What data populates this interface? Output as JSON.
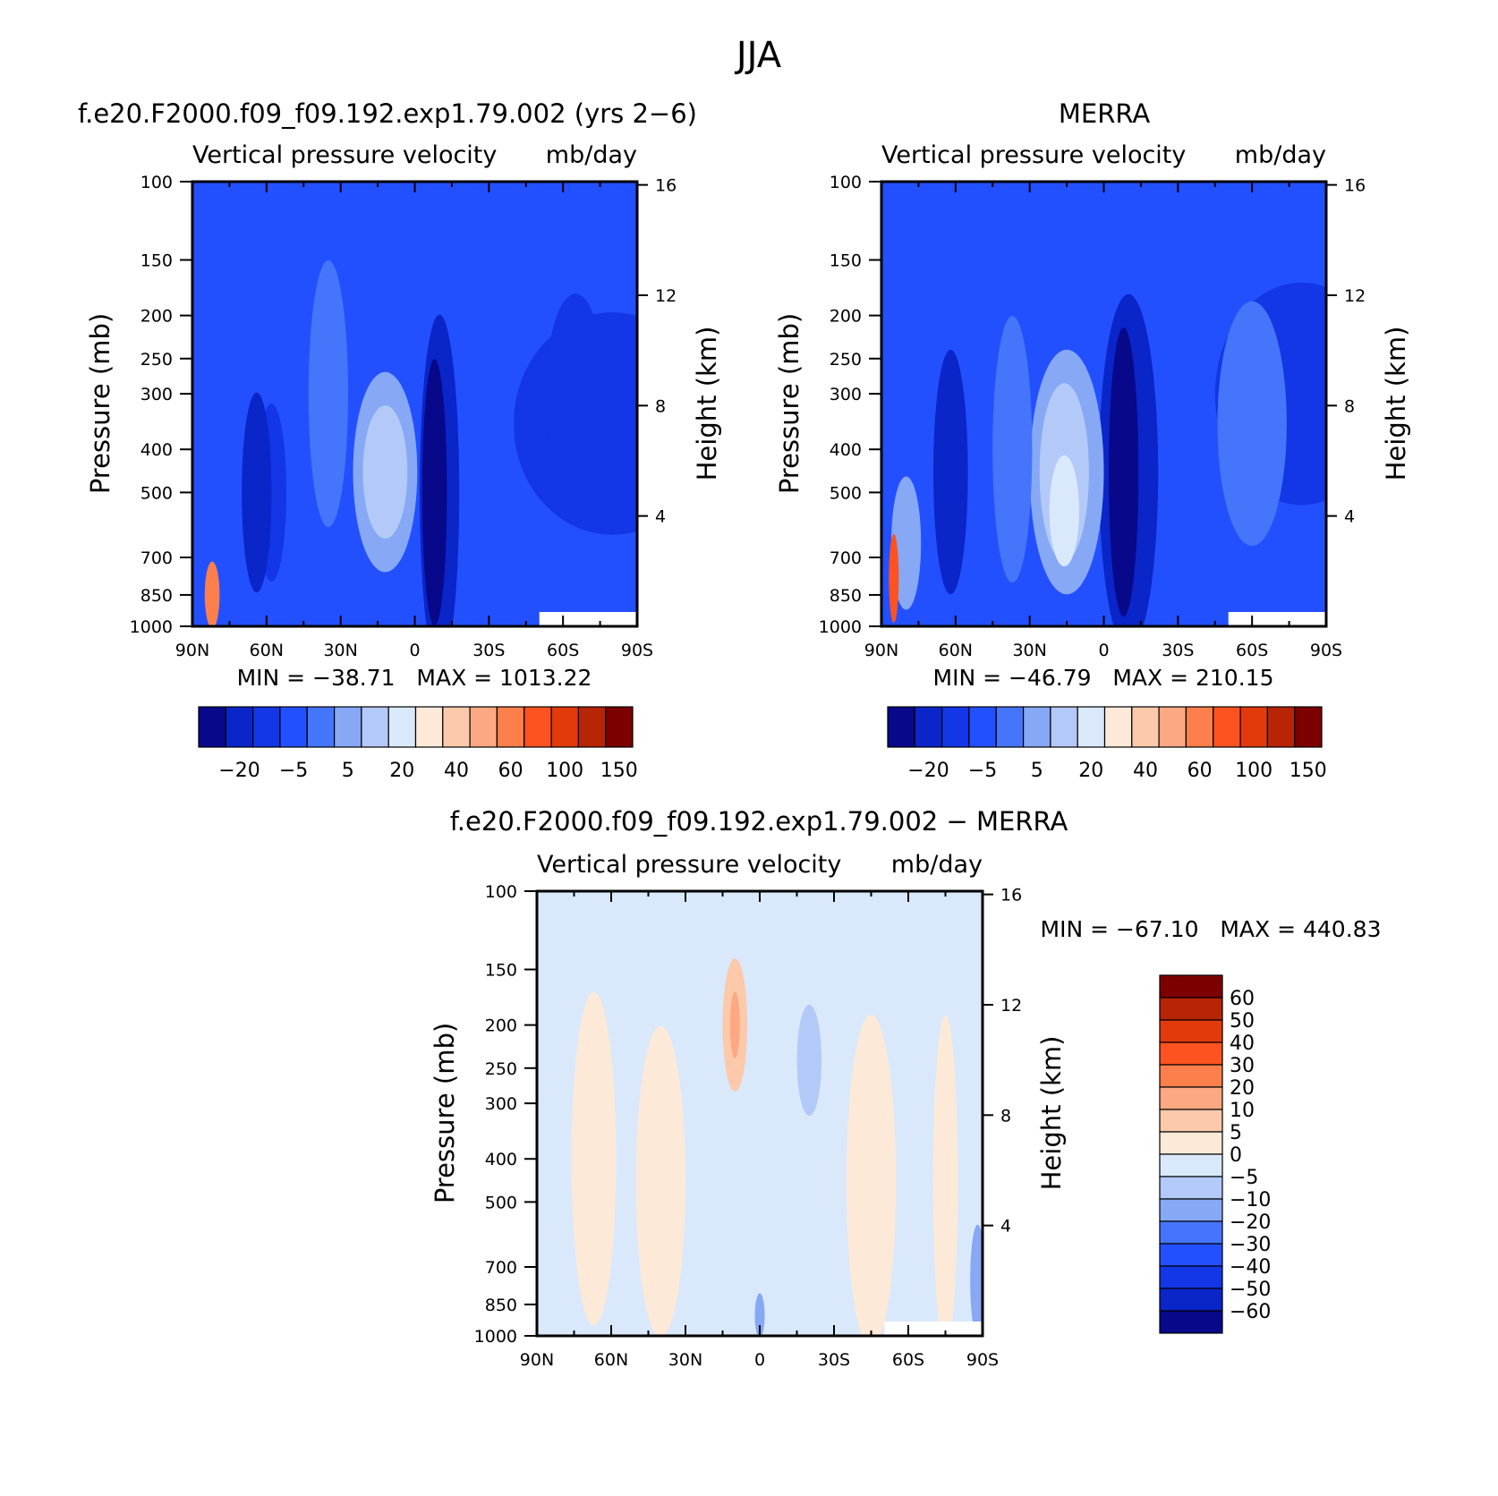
{
  "page_title": "JJA",
  "chart_data": [
    {
      "type": "heatmap",
      "title": "f.e20.F2000.f09_f09.192.exp1.79.002 (yrs 2−6)",
      "subtitle_left": "Vertical pressure velocity",
      "subtitle_right": "mb/day",
      "xlabel": "",
      "ylabel": "Pressure (mb)",
      "y2label": "Height (km)",
      "x_ticks": [
        "90N",
        "60N",
        "30N",
        "0",
        "30S",
        "60S",
        "90S"
      ],
      "y_ticks": [
        "100",
        "150",
        "200",
        "250",
        "300",
        "400",
        "500",
        "700",
        "850",
        "1000"
      ],
      "y2_ticks": [
        "16",
        "12",
        "8",
        "4"
      ],
      "stats": "MIN = −38.71   MAX = 1013.22",
      "colorbar_labels": [
        "−20",
        "−5",
        "5",
        "20",
        "40",
        "60",
        "100",
        "150"
      ],
      "levels": [
        -30,
        -20,
        -10,
        -5,
        0,
        5,
        10,
        20,
        30,
        40,
        50,
        60,
        80,
        100,
        150
      ],
      "colors": [
        "#08088a",
        "#0a25c8",
        "#1336e6",
        "#2350ff",
        "#4575fa",
        "#86a8f5",
        "#b3c9f8",
        "#d9e9fb",
        "#fde9d8",
        "#fcc9ab",
        "#fca983",
        "#fd7f4b",
        "#fe5220",
        "#e33a0c",
        "#b62506",
        "#7c0000"
      ],
      "background_class": 3,
      "features": [
        {
          "lat": -80,
          "p": 350,
          "w": 40,
          "h": 1.0,
          "cls": 2
        },
        {
          "lat": -65,
          "p": 300,
          "w": 12,
          "h": 0.9,
          "cls": 2
        },
        {
          "lat": -10,
          "p": 500,
          "w": 8,
          "h": 1.6,
          "cls": 1
        },
        {
          "lat": -8,
          "p": 500,
          "w": 5,
          "h": 1.2,
          "cls": 0
        },
        {
          "lat": 12,
          "p": 450,
          "w": 13,
          "h": 0.9,
          "cls": 5
        },
        {
          "lat": 12,
          "p": 450,
          "w": 9,
          "h": 0.6,
          "cls": 6
        },
        {
          "lat": 35,
          "p": 300,
          "w": 8,
          "h": 1.2,
          "cls": 4
        },
        {
          "lat": 58,
          "p": 500,
          "w": 6,
          "h": 0.8,
          "cls": 2
        },
        {
          "lat": 64,
          "p": 500,
          "w": 6,
          "h": 0.9,
          "cls": 1
        },
        {
          "lat": 80,
          "p": 650,
          "w": 4,
          "h": 0.6,
          "cls": 3
        },
        {
          "lat": 82,
          "p": 850,
          "w": 3,
          "h": 0.3,
          "cls": 11
        }
      ]
    },
    {
      "type": "heatmap",
      "title": "MERRA",
      "subtitle_left": "Vertical pressure velocity",
      "subtitle_right": "mb/day",
      "xlabel": "",
      "ylabel": "Pressure (mb)",
      "y2label": "Height (km)",
      "x_ticks": [
        "90N",
        "60N",
        "30N",
        "0",
        "30S",
        "60S",
        "90S"
      ],
      "y_ticks": [
        "100",
        "150",
        "200",
        "250",
        "300",
        "400",
        "500",
        "700",
        "850",
        "1000"
      ],
      "y2_ticks": [
        "16",
        "12",
        "8",
        "4"
      ],
      "stats": "MIN = −46.79   MAX = 210.15",
      "colorbar_labels": [
        "−20",
        "−5",
        "5",
        "20",
        "40",
        "60",
        "100",
        "150"
      ],
      "levels": [
        -30,
        -20,
        -10,
        -5,
        0,
        5,
        10,
        20,
        30,
        40,
        50,
        60,
        80,
        100,
        150
      ],
      "colors": [
        "#08088a",
        "#0a25c8",
        "#1336e6",
        "#2350ff",
        "#4575fa",
        "#86a8f5",
        "#b3c9f8",
        "#d9e9fb",
        "#fde9d8",
        "#fcc9ab",
        "#fca983",
        "#fd7f4b",
        "#fe5220",
        "#e33a0c",
        "#b62506",
        "#7c0000"
      ],
      "background_class": 3,
      "features": [
        {
          "lat": -80,
          "p": 300,
          "w": 35,
          "h": 1.0,
          "cls": 2
        },
        {
          "lat": -60,
          "p": 350,
          "w": 14,
          "h": 1.1,
          "cls": 4
        },
        {
          "lat": -10,
          "p": 450,
          "w": 12,
          "h": 1.6,
          "cls": 1
        },
        {
          "lat": -8,
          "p": 450,
          "w": 6,
          "h": 1.3,
          "cls": 0
        },
        {
          "lat": 15,
          "p": 450,
          "w": 15,
          "h": 1.1,
          "cls": 5
        },
        {
          "lat": 16,
          "p": 450,
          "w": 10,
          "h": 0.8,
          "cls": 6
        },
        {
          "lat": 16,
          "p": 550,
          "w": 6,
          "h": 0.5,
          "cls": 7
        },
        {
          "lat": 37,
          "p": 400,
          "w": 8,
          "h": 1.2,
          "cls": 4
        },
        {
          "lat": 62,
          "p": 450,
          "w": 7,
          "h": 1.1,
          "cls": 1
        },
        {
          "lat": 80,
          "p": 650,
          "w": 6,
          "h": 0.6,
          "cls": 5
        },
        {
          "lat": 85,
          "p": 780,
          "w": 2,
          "h": 0.4,
          "cls": 12
        }
      ]
    },
    {
      "type": "heatmap",
      "title": "f.e20.F2000.f09_f09.192.exp1.79.002 − MERRA",
      "subtitle_left": "Vertical pressure velocity",
      "subtitle_right": "mb/day",
      "xlabel": "",
      "ylabel": "Pressure (mb)",
      "y2label": "Height (km)",
      "x_ticks": [
        "90N",
        "60N",
        "30N",
        "0",
        "30S",
        "60S",
        "90S"
      ],
      "y_ticks": [
        "100",
        "150",
        "200",
        "250",
        "300",
        "400",
        "500",
        "700",
        "850",
        "1000"
      ],
      "y2_ticks": [
        "16",
        "12",
        "8",
        "4"
      ],
      "stats": "MIN = −67.10   MAX = 440.83",
      "colorbar_labels": [
        "60",
        "50",
        "40",
        "30",
        "20",
        "10",
        "5",
        "0",
        "−5",
        "−10",
        "−20",
        "−30",
        "−40",
        "−50",
        "−60"
      ],
      "levels": [
        -60,
        -50,
        -40,
        -30,
        -20,
        -10,
        -5,
        0,
        5,
        10,
        20,
        30,
        40,
        50,
        60
      ],
      "colors": [
        "#08088a",
        "#0a25c8",
        "#1336e6",
        "#2350ff",
        "#4575fa",
        "#86a8f5",
        "#b3c9f8",
        "#d9e9fb",
        "#fde9d8",
        "#fcc9ab",
        "#fca983",
        "#fd7f4b",
        "#fe5220",
        "#e33a0c",
        "#b62506",
        "#7c0000"
      ],
      "background_class": 7,
      "features": [
        {
          "lat": 67,
          "p": 400,
          "w": 9,
          "h": 1.5,
          "cls": 8
        },
        {
          "lat": 40,
          "p": 450,
          "w": 10,
          "h": 1.4,
          "cls": 8
        },
        {
          "lat": 10,
          "p": 200,
          "w": 5,
          "h": 0.6,
          "cls": 9
        },
        {
          "lat": 10,
          "p": 200,
          "w": 2,
          "h": 0.3,
          "cls": 10
        },
        {
          "lat": -20,
          "p": 240,
          "w": 5,
          "h": 0.5,
          "cls": 6
        },
        {
          "lat": -45,
          "p": 450,
          "w": 10,
          "h": 1.5,
          "cls": 8
        },
        {
          "lat": -75,
          "p": 450,
          "w": 5,
          "h": 1.5,
          "cls": 8
        },
        {
          "lat": -88,
          "p": 750,
          "w": 3,
          "h": 0.5,
          "cls": 5
        },
        {
          "lat": 0,
          "p": 900,
          "w": 2,
          "h": 0.2,
          "cls": 5
        }
      ]
    }
  ]
}
